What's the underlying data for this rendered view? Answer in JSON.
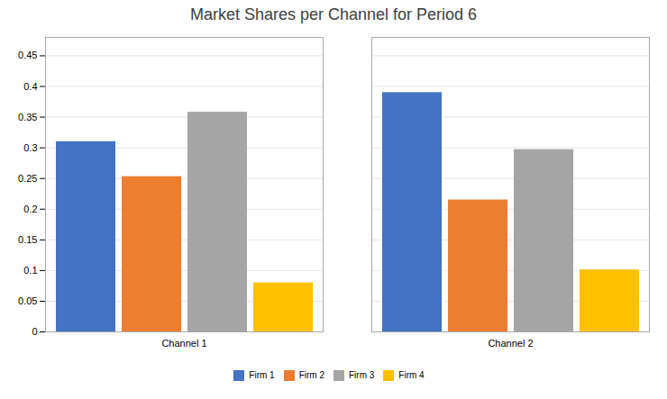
{
  "chart_data": {
    "type": "bar",
    "title": "Market Shares per Channel for Period 6",
    "categories": [
      "Channel 1",
      "Channel 2"
    ],
    "series": [
      {
        "name": "Firm 1",
        "color": "#4472C4",
        "values": [
          0.31,
          0.39
        ]
      },
      {
        "name": "Firm 2",
        "color": "#ED7D31",
        "values": [
          0.253,
          0.215
        ]
      },
      {
        "name": "Firm 3",
        "color": "#A5A5A5",
        "values": [
          0.358,
          0.297
        ]
      },
      {
        "name": "Firm 4",
        "color": "#FFC000",
        "values": [
          0.08,
          0.101
        ]
      }
    ],
    "ylim": [
      0,
      0.48
    ],
    "yticks": [
      0,
      0.05,
      0.1,
      0.15,
      0.2,
      0.25,
      0.3,
      0.35,
      0.4,
      0.45
    ],
    "grid": true,
    "legend": "bottom"
  }
}
